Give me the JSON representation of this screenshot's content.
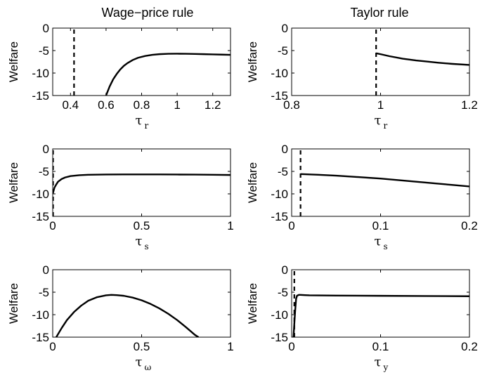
{
  "column_titles": [
    "Wage−price rule",
    "Taylor rule"
  ],
  "chart_data": [
    {
      "type": "line",
      "ylabel": "Welfare",
      "xlabel": "τ",
      "xlabel_sub": "r",
      "xlim": [
        0.3,
        1.3
      ],
      "ylim": [
        -15,
        0
      ],
      "xticks": [
        0.4,
        0.6,
        0.8,
        1,
        1.2
      ],
      "xtick_labels": [
        "0.4",
        "0.6",
        "0.8",
        "1",
        "1.2"
      ],
      "yticks": [
        0,
        -5,
        -10,
        -15
      ],
      "ytick_labels": [
        "0",
        "-5",
        "-10",
        "-15"
      ],
      "vline": 0.42,
      "series": [
        {
          "x": [
            0.6,
            0.62,
            0.64,
            0.66,
            0.68,
            0.7,
            0.72,
            0.75,
            0.78,
            0.82,
            0.86,
            0.9,
            0.95,
            1.0,
            1.05,
            1.1,
            1.15,
            1.2,
            1.25,
            1.3
          ],
          "y": [
            -15,
            -13.0,
            -11.4,
            -10.2,
            -9.2,
            -8.4,
            -7.8,
            -7.1,
            -6.6,
            -6.2,
            -5.95,
            -5.8,
            -5.72,
            -5.7,
            -5.72,
            -5.75,
            -5.8,
            -5.85,
            -5.9,
            -5.95
          ]
        }
      ]
    },
    {
      "type": "line",
      "ylabel": "Welfare",
      "xlabel": "τ",
      "xlabel_sub": "r",
      "xlim": [
        0.8,
        1.2
      ],
      "ylim": [
        -15,
        0
      ],
      "xticks": [
        0.8,
        1,
        1.2
      ],
      "xtick_labels": [
        "0.8",
        "1",
        "1.2"
      ],
      "yticks": [
        0,
        -5,
        -10,
        -15
      ],
      "ytick_labels": [
        "0",
        "-5",
        "-10",
        "-15"
      ],
      "vline": 0.99,
      "series": [
        {
          "x": [
            0.99,
            1.0,
            1.02,
            1.05,
            1.08,
            1.1,
            1.13,
            1.16,
            1.2
          ],
          "y": [
            -5.6,
            -5.8,
            -6.25,
            -6.8,
            -7.2,
            -7.4,
            -7.7,
            -7.95,
            -8.2
          ]
        }
      ]
    },
    {
      "type": "line",
      "ylabel": "Welfare",
      "xlabel": "τ",
      "xlabel_sub": "s",
      "xlim": [
        0,
        1
      ],
      "ylim": [
        -15,
        0
      ],
      "xticks": [
        0,
        0.5,
        1
      ],
      "xtick_labels": [
        "0",
        "0.5",
        "1"
      ],
      "yticks": [
        0,
        -5,
        -10,
        -15
      ],
      "ytick_labels": [
        "0",
        "-5",
        "-10",
        "-15"
      ],
      "vline": 0.002,
      "series": [
        {
          "x": [
            0,
            0.01,
            0.02,
            0.03,
            0.05,
            0.07,
            0.1,
            0.15,
            0.2,
            0.3,
            0.4,
            0.5,
            0.6,
            0.7,
            0.8,
            0.9,
            1.0
          ],
          "y": [
            -10,
            -8.6,
            -7.9,
            -7.3,
            -6.7,
            -6.35,
            -6.05,
            -5.85,
            -5.75,
            -5.7,
            -5.68,
            -5.67,
            -5.68,
            -5.7,
            -5.72,
            -5.75,
            -5.8
          ]
        }
      ]
    },
    {
      "type": "line",
      "ylabel": "Welfare",
      "xlabel": "τ",
      "xlabel_sub": "s",
      "xlim": [
        0,
        0.2
      ],
      "ylim": [
        -15,
        0
      ],
      "xticks": [
        0,
        0.1,
        0.2
      ],
      "xtick_labels": [
        "0",
        "0.1",
        "0.2"
      ],
      "yticks": [
        0,
        -5,
        -10,
        -15
      ],
      "ytick_labels": [
        "0",
        "-5",
        "-10",
        "-15"
      ],
      "vline": 0.01,
      "series": [
        {
          "x": [
            0.01,
            0.03,
            0.05,
            0.07,
            0.1,
            0.12,
            0.14,
            0.16,
            0.18,
            0.2
          ],
          "y": [
            -5.6,
            -5.75,
            -5.95,
            -6.2,
            -6.6,
            -6.95,
            -7.3,
            -7.65,
            -8.0,
            -8.35
          ]
        }
      ]
    },
    {
      "type": "line",
      "ylabel": "Welfare",
      "xlabel": "τ",
      "xlabel_sub": "ω",
      "xlim": [
        0,
        1
      ],
      "ylim": [
        -15,
        0
      ],
      "xticks": [
        0,
        0.5,
        1
      ],
      "xtick_labels": [
        "0",
        "0.5",
        "1"
      ],
      "yticks": [
        0,
        -5,
        -10,
        -15
      ],
      "ytick_labels": [
        "0",
        "-5",
        "-10",
        "-15"
      ],
      "vline": null,
      "series": [
        {
          "x": [
            0.02,
            0.05,
            0.08,
            0.12,
            0.16,
            0.2,
            0.25,
            0.3,
            0.33,
            0.36,
            0.4,
            0.45,
            0.5,
            0.55,
            0.6,
            0.65,
            0.7,
            0.75,
            0.8,
            0.82
          ],
          "y": [
            -15,
            -13.0,
            -11.2,
            -9.4,
            -8.0,
            -6.9,
            -6.1,
            -5.7,
            -5.6,
            -5.65,
            -5.8,
            -6.2,
            -6.8,
            -7.6,
            -8.6,
            -9.8,
            -11.2,
            -12.8,
            -14.5,
            -15
          ]
        }
      ]
    },
    {
      "type": "line",
      "ylabel": "Welfare",
      "xlabel": "τ",
      "xlabel_sub": "y",
      "xlim": [
        0,
        0.2
      ],
      "ylim": [
        -15,
        0
      ],
      "xticks": [
        0,
        0.1,
        0.2
      ],
      "xtick_labels": [
        "0",
        "0.1",
        "0.2"
      ],
      "yticks": [
        0,
        -5,
        -10,
        -15
      ],
      "ytick_labels": [
        "0",
        "-5",
        "-10",
        "-15"
      ],
      "vline": 0.003,
      "series": [
        {
          "x": [
            0.002,
            0.003,
            0.004,
            0.005,
            0.006,
            0.008,
            0.01,
            0.015,
            0.02,
            0.05,
            0.1,
            0.15,
            0.2
          ],
          "y": [
            -15,
            -12.0,
            -9.0,
            -6.5,
            -5.8,
            -5.6,
            -5.6,
            -5.65,
            -5.7,
            -5.75,
            -5.8,
            -5.85,
            -5.9
          ]
        }
      ]
    }
  ]
}
